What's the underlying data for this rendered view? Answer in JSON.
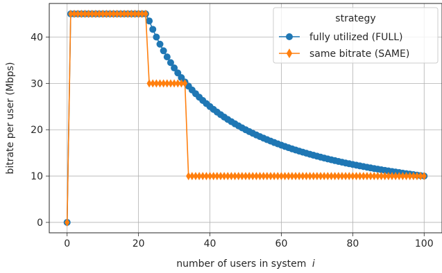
{
  "chart_data": {
    "type": "line",
    "xlabel": "number of users in system",
    "xlabel_var": "i",
    "ylabel": "bitrate per user (Mbps)",
    "xlim": [
      -5,
      105
    ],
    "ylim": [
      -2.25,
      47.25
    ],
    "xticks": [
      0,
      20,
      40,
      60,
      80,
      100
    ],
    "yticks": [
      0,
      10,
      20,
      30,
      40
    ],
    "grid": true,
    "legend": {
      "title": "strategy",
      "placement": "top-right"
    },
    "series": [
      {
        "name": "fully utilized (FULL)",
        "color": "#1f77b4",
        "marker": "circle",
        "rule": "0 at i=0; 45 for 1<=i<=22; 1000/i for 23<=i<=100",
        "x_range": [
          0,
          100
        ]
      },
      {
        "name": "same bitrate (SAME)",
        "color": "#ff7f0e",
        "marker": "thin-diamond",
        "rule": "0 at i=0; 45 for 1<=i<=22; 30 for 23<=i<=33; 10 for 34<=i<=100",
        "x_range": [
          0,
          100
        ]
      }
    ]
  }
}
